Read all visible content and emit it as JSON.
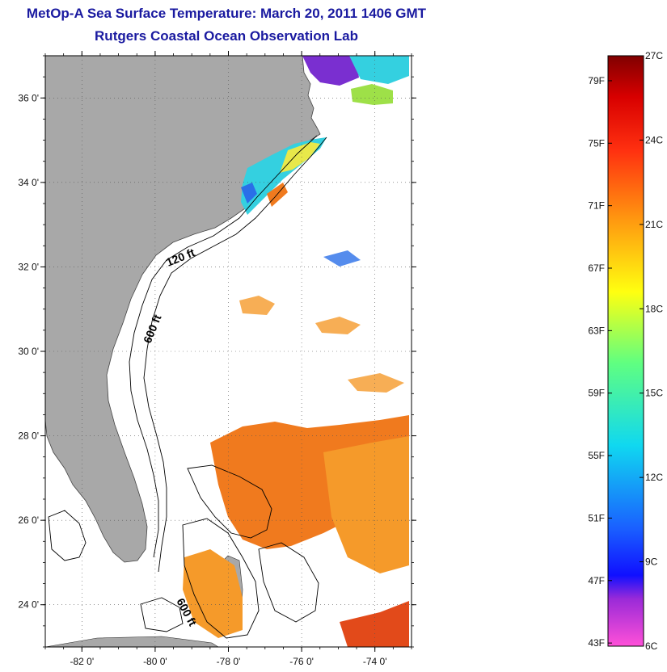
{
  "title": {
    "line1": "MetOp-A Sea Surface Temperature:  March 20, 2011 1406 GMT",
    "line2": "Rutgers Coastal Ocean Observation Lab"
  },
  "map": {
    "lon_range": [
      -83,
      -73
    ],
    "lat_range": [
      23,
      37
    ],
    "lon_ticks": [
      {
        "value": -82,
        "label": "-82 0'"
      },
      {
        "value": -80,
        "label": "-80 0'"
      },
      {
        "value": -78,
        "label": "-78 0'"
      },
      {
        "value": -76,
        "label": "-76 0'"
      },
      {
        "value": -74,
        "label": "-74 0'"
      }
    ],
    "lat_ticks": [
      {
        "value": 24,
        "label": "24 0'"
      },
      {
        "value": 26,
        "label": "26 0'"
      },
      {
        "value": 28,
        "label": "28 0'"
      },
      {
        "value": 30,
        "label": "30 0'"
      },
      {
        "value": 32,
        "label": "32 0'"
      },
      {
        "value": 34,
        "label": "34 0'"
      },
      {
        "value": 36,
        "label": "36 0'"
      }
    ],
    "contour_labels": [
      {
        "text": "120 ft"
      },
      {
        "text": "600 ft"
      },
      {
        "text": "600 ft"
      }
    ],
    "colors": {
      "land": "#a8a8a8",
      "ocean": "#ffffff",
      "warm": "#f07a1e",
      "orange": "#f59a2a",
      "teal": "#34d0e0",
      "blue": "#2a6fe8",
      "purple": "#7a2fd0",
      "yellow": "#e8e84a",
      "green": "#9ee048"
    }
  },
  "colorbar": {
    "f_labels": [
      "79F",
      "75F",
      "71F",
      "67F",
      "63F",
      "59F",
      "55F",
      "51F",
      "47F",
      "43F"
    ],
    "c_labels": [
      "27C",
      "24C",
      "21C",
      "18C",
      "15C",
      "12C",
      "9C",
      "6C"
    ],
    "min_c": 6,
    "max_c": 27
  }
}
